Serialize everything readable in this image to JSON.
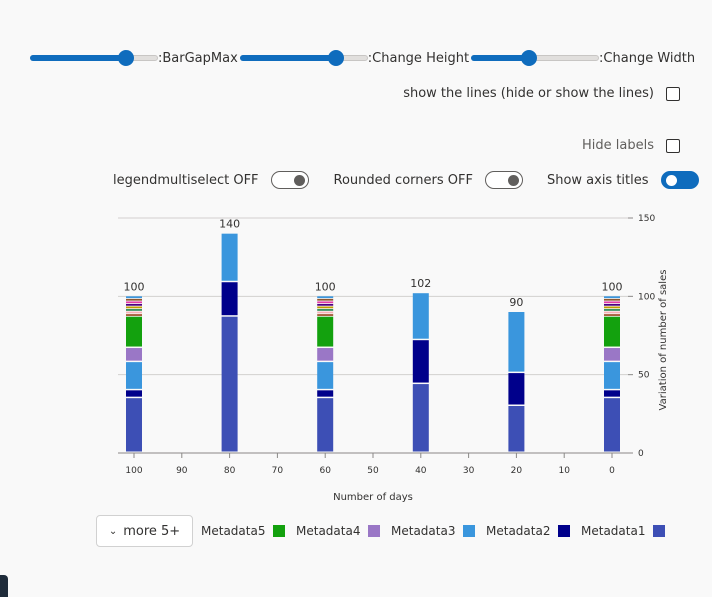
{
  "controls": {
    "sliders": [
      {
        "label": ":BarGapMax",
        "value": 0.75
      },
      {
        "label": ":Change Height",
        "value": 0.75
      },
      {
        "label": ":Change Width",
        "value": 0.45
      }
    ],
    "show_lines_label": "show the lines (hide or show the lines)",
    "show_lines_checked": false,
    "hide_labels_label": "Hide labels",
    "hide_labels_checked": false,
    "legend_multiselect_label": "legendmultiselect OFF",
    "rounded_corners_label": "Rounded corners OFF",
    "axis_titles_label": "Show axis titles",
    "axis_titles_on": true
  },
  "legend": {
    "more_label": "more 5+",
    "chevron_icon": "chevron-down-icon",
    "items": [
      {
        "name": "Metadata5",
        "color": "#13a10e"
      },
      {
        "name": "Metadata4",
        "color": "#9a77c6"
      },
      {
        "name": "Metadata3",
        "color": "#3a96dd"
      },
      {
        "name": "Metadata2",
        "color": "#00008b"
      },
      {
        "name": "Metadata1",
        "color": "#3d4fb5"
      }
    ]
  },
  "chart_data": {
    "type": "bar",
    "stacked": true,
    "xlabel": "Number of days",
    "ylabel": "Variation of number of sales",
    "x_axis_reversed": true,
    "x_ticks": [
      100,
      90,
      80,
      70,
      60,
      50,
      40,
      30,
      20,
      10,
      0
    ],
    "y_ticks": [
      0,
      50,
      100,
      150
    ],
    "ylim": [
      0,
      150
    ],
    "y_axis_side": "right",
    "grid": true,
    "bars": [
      {
        "x": 100,
        "total": 100,
        "segments": [
          {
            "series": "Metadata1",
            "value": 35
          },
          {
            "series": "Metadata2",
            "value": 5
          },
          {
            "series": "Metadata3",
            "value": 18
          },
          {
            "series": "Metadata4",
            "value": 9
          },
          {
            "series": "Metadata5",
            "value": 20
          },
          {
            "series": "others",
            "value": 13
          }
        ]
      },
      {
        "x": 80,
        "total": 140,
        "segments": [
          {
            "series": "Metadata1",
            "value": 87
          },
          {
            "series": "Metadata2",
            "value": 22
          },
          {
            "series": "Metadata3",
            "value": 31
          }
        ]
      },
      {
        "x": 60,
        "total": 100,
        "segments": [
          {
            "series": "Metadata1",
            "value": 35
          },
          {
            "series": "Metadata2",
            "value": 5
          },
          {
            "series": "Metadata3",
            "value": 18
          },
          {
            "series": "Metadata4",
            "value": 9
          },
          {
            "series": "Metadata5",
            "value": 20
          },
          {
            "series": "others",
            "value": 13
          }
        ]
      },
      {
        "x": 40,
        "total": 102,
        "segments": [
          {
            "series": "Metadata1",
            "value": 44
          },
          {
            "series": "Metadata2",
            "value": 28
          },
          {
            "series": "Metadata3",
            "value": 30
          }
        ]
      },
      {
        "x": 20,
        "total": 90,
        "segments": [
          {
            "series": "Metadata1",
            "value": 30
          },
          {
            "series": "Metadata2",
            "value": 21
          },
          {
            "series": "Metadata3",
            "value": 39
          }
        ]
      },
      {
        "x": 0,
        "total": 100,
        "segments": [
          {
            "series": "Metadata1",
            "value": 35
          },
          {
            "series": "Metadata2",
            "value": 5
          },
          {
            "series": "Metadata3",
            "value": 18
          },
          {
            "series": "Metadata4",
            "value": 9
          },
          {
            "series": "Metadata5",
            "value": 20
          },
          {
            "series": "others",
            "value": 13
          }
        ]
      }
    ],
    "other_series_colors": [
      "#a0522d",
      "#f7b0b7",
      "#2e8b57",
      "#c19c00",
      "#4b0082",
      "#e43ba6",
      "#8e562e",
      "#3a96dd"
    ],
    "series_colors": {
      "Metadata1": "#3d4fb5",
      "Metadata2": "#00008b",
      "Metadata3": "#3a96dd",
      "Metadata4": "#9a77c6",
      "Metadata5": "#13a10e"
    }
  }
}
